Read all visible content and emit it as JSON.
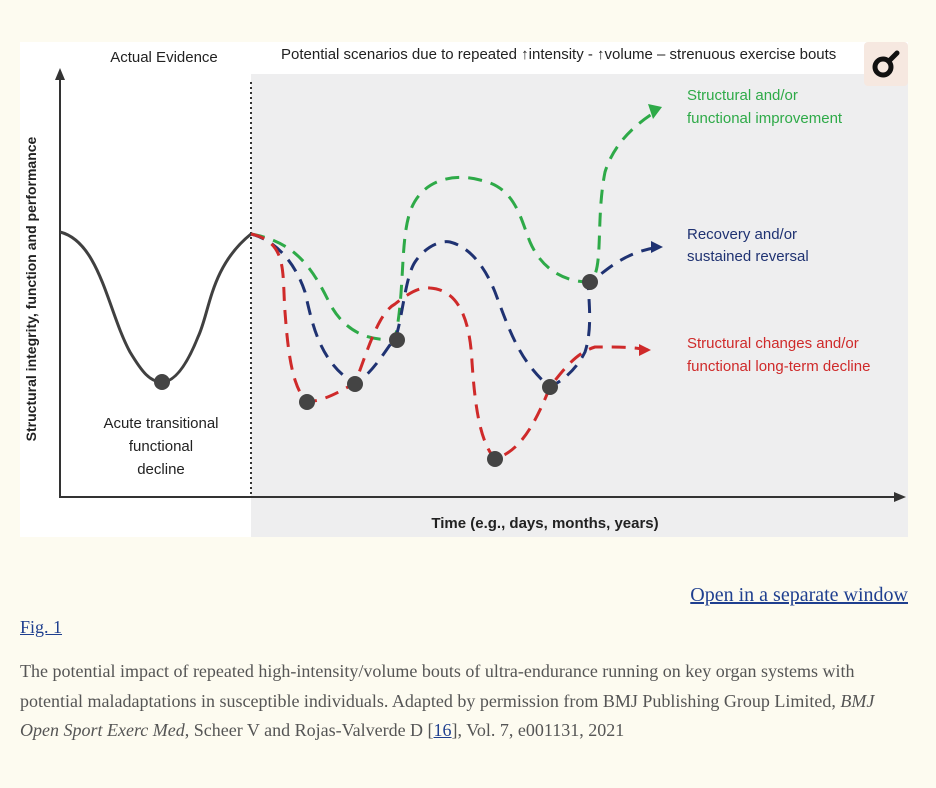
{
  "figure": {
    "header_left": "Actual Evidence",
    "header_right": "Potential scenarios due to repeated ↑intensity - ↑volume – strenuous exercise bouts",
    "y_axis_label": "Structural integrity, function and performance",
    "x_axis_label": "Time (e.g., days, months, years)",
    "acute_label": [
      "Acute transitional",
      "functional",
      "decline"
    ],
    "outcomes": {
      "improvement": [
        "Structural and/or",
        "functional improvement"
      ],
      "recovery": [
        "Recovery and/or",
        "sustained reversal"
      ],
      "decline": [
        "Structural changes and/or",
        "functional long-term decline"
      ]
    },
    "colors": {
      "improvement": "#2eaa48",
      "recovery": "#1f3272",
      "decline": "#cf2a2a",
      "baseline": "#404040",
      "scenario_bg": "#eeeeef"
    },
    "zoom_icon": "magnifier-icon"
  },
  "links": {
    "open_window": "Open in a separate window",
    "fig_ref": "Fig. 1"
  },
  "caption": {
    "text_1": "The potential impact of repeated high-intensity/volume bouts of ultra-endurance running on key organ systems with potential maladaptations in susceptible individuals. Adapted by permission from BMJ Publishing Group Limited, ",
    "journal": "BMJ Open Sport Exerc Med",
    "text_2": ", Scheer V and Rojas-Valverde D [",
    "ref": "16",
    "text_3": "], Vol. 7, e001131, 2021"
  }
}
